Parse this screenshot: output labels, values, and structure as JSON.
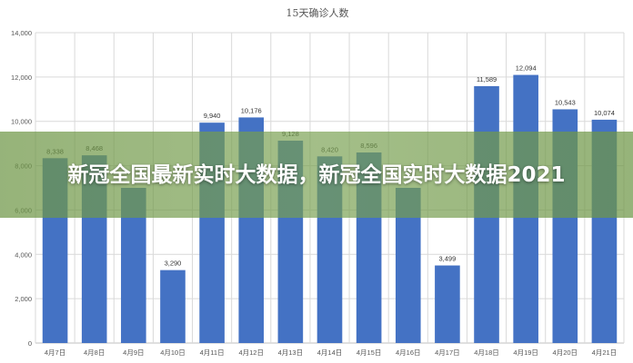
{
  "chart_data": {
    "type": "bar",
    "title": "15天确诊人数",
    "categories": [
      "4月7日",
      "4月8日",
      "4月9日",
      "4月10日",
      "4月11日",
      "4月12日",
      "4月13日",
      "4月14日",
      "4月15日",
      "4月16日",
      "4月17日",
      "4月18日",
      "4月19日",
      "4月20日",
      "4月21日"
    ],
    "values": [
      8338,
      8468,
      7000,
      3290,
      9940,
      10176,
      9128,
      8420,
      8596,
      7000,
      3499,
      11589,
      12094,
      10543,
      10074
    ],
    "value_labels": [
      "8,338",
      "8,468",
      "",
      "3,290",
      "9,940",
      "10,176",
      "9,128",
      "8,420",
      "8,596",
      "",
      "3,499",
      "11,589",
      "12,094",
      "10,543",
      "10,074"
    ],
    "ylim": [
      0,
      14000
    ],
    "yticks": [
      0,
      2000,
      4000,
      6000,
      8000,
      10000,
      12000,
      14000
    ],
    "ytick_labels": [
      "0",
      "2,000",
      "4,000",
      "6,000",
      "8,000",
      "10,000",
      "12,000",
      "14,000"
    ],
    "xlabel": "",
    "ylabel": "",
    "grid": true,
    "bar_color": "#4472c4"
  },
  "banner": {
    "text": "新冠全国最新实时大数据，新冠全国实时大数据2021",
    "color": "#7a9e4e"
  }
}
